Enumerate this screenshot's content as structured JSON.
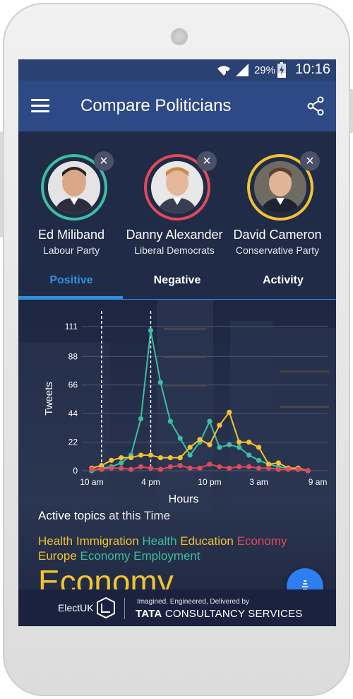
{
  "status_bar": {
    "battery": "29%",
    "time": "10:16",
    "icons": [
      "wifi-icon",
      "signal-icon",
      "battery-charging-icon"
    ]
  },
  "app_bar": {
    "title": "Compare Politicians",
    "menu_icon": "hamburger-menu-icon",
    "share_icon": "share-icon"
  },
  "politicians": [
    {
      "name": "Ed Miliband",
      "party": "Labour Party",
      "ring_color": "#3bbfa0"
    },
    {
      "name": "Danny Alexander",
      "party": "Liberal Democrats",
      "ring_color": "#e04a5a"
    },
    {
      "name": "David Cameron",
      "party": "Conservative Party",
      "ring_color": "#f2c230"
    }
  ],
  "remove_label": "×",
  "tabs": [
    {
      "label": "Positive",
      "active": true
    },
    {
      "label": "Negative",
      "active": false
    },
    {
      "label": "Activity",
      "active": false
    }
  ],
  "chart_data": {
    "type": "line",
    "ylabel": "Tweets",
    "xlabel": "Hours",
    "y_ticks": [
      "0",
      "22",
      "44",
      "66",
      "88",
      "111"
    ],
    "ylim": [
      0,
      111
    ],
    "x_tick_labels": [
      "10 am",
      "4 pm",
      "10 pm",
      "3 am",
      "9 am"
    ],
    "x_tick_positions": [
      0,
      6,
      12,
      17,
      23
    ],
    "xlim": [
      -1,
      24
    ],
    "markers": [
      1,
      6
    ],
    "series": [
      {
        "color": "#3bbfa0",
        "values": [
          0,
          2,
          3,
          6,
          12,
          40,
          108,
          68,
          38,
          25,
          12,
          22,
          38,
          18,
          20,
          18,
          12,
          8,
          5,
          3,
          2,
          1,
          0
        ]
      },
      {
        "color": "#f2c230",
        "values": [
          2,
          4,
          8,
          10,
          10,
          12,
          12,
          10,
          10,
          10,
          18,
          24,
          20,
          35,
          45,
          22,
          22,
          18,
          5,
          6,
          2,
          2,
          0
        ]
      },
      {
        "color": "#e04a5a",
        "values": [
          1,
          1,
          2,
          2,
          1,
          3,
          2,
          1,
          3,
          4,
          2,
          2,
          5,
          3,
          2,
          3,
          3,
          2,
          2,
          1,
          1,
          1,
          0
        ]
      }
    ]
  },
  "topics": {
    "label_bold": "Active topics",
    "label_rest": " at this Time",
    "row1": [
      {
        "text": "Health Immigration ",
        "color": "#f2c230"
      },
      {
        "text": "Health ",
        "color": "#3bbfa0"
      },
      {
        "text": "Education ",
        "color": "#f2c230"
      },
      {
        "text": "Economy",
        "color": "#e04a5a"
      }
    ],
    "row2": [
      {
        "text": "Europe ",
        "color": "#f2c230"
      },
      {
        "text": "Economy Employment",
        "color": "#3bbfa0"
      }
    ],
    "big": "Economy"
  },
  "footer": {
    "brand": "ElectUK",
    "tagline": "Imagined, Engineered, Delivered by",
    "tcs_bold": "TATA",
    "tcs_rest": " CONSULTANCY SERVICES"
  }
}
